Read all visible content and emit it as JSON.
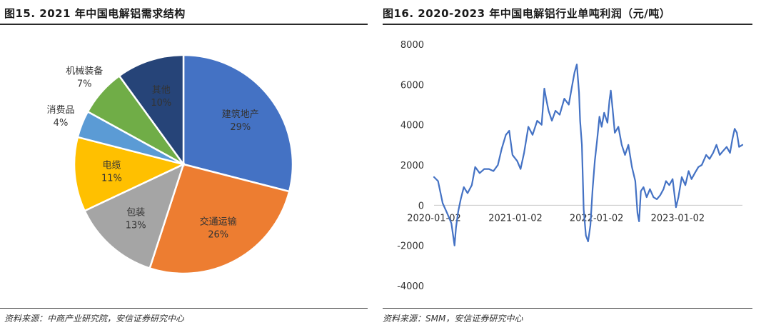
{
  "left": {
    "title": "图15. 2021 年中国电解铝需求结构",
    "source": "资料来源：中商产业研究院，安信证券研究中心"
  },
  "right": {
    "title": "图16. 2020-2023 年中国电解铝行业单吨利润（元/吨）",
    "source": "资料来源：SMM，安信证券研究中心"
  },
  "chart_data": [
    {
      "type": "pie",
      "title": "2021 年中国电解铝需求结构",
      "slices": [
        {
          "label": "建筑地产",
          "value": 29,
          "value_label": "29%",
          "color": "#4472C4"
        },
        {
          "label": "交通运输",
          "value": 26,
          "value_label": "26%",
          "color": "#ED7D31"
        },
        {
          "label": "包装",
          "value": 13,
          "value_label": "13%",
          "color": "#A5A5A5"
        },
        {
          "label": "电缆",
          "value": 11,
          "value_label": "11%",
          "color": "#FFC000"
        },
        {
          "label": "消费品",
          "value": 4,
          "value_label": "4%",
          "color": "#5B9BD5"
        },
        {
          "label": "机械装备",
          "value": 7,
          "value_label": "7%",
          "color": "#70AD47"
        },
        {
          "label": "其他",
          "value": 10,
          "value_label": "10%",
          "color": "#264478"
        }
      ]
    },
    {
      "type": "line",
      "title": "2020-2023 年中国电解铝行业单吨利润（元/吨）",
      "ylim": [
        -4000,
        8000
      ],
      "yticks": [
        8000,
        6000,
        4000,
        2000,
        0,
        -2000,
        -4000
      ],
      "xticks": [
        "2020-01-02",
        "2021-01-02",
        "2022-01-02",
        "2023-01-02"
      ],
      "xlim": [
        "2020-01-02",
        "2023-10-20"
      ],
      "color": "#4472C4",
      "series": [
        {
          "x": [
            "2020-01-02",
            "2020-01-20",
            "2020-02-10",
            "2020-03-01",
            "2020-03-20",
            "2020-04-03",
            "2020-04-10",
            "2020-04-20",
            "2020-05-01",
            "2020-05-15",
            "2020-06-01",
            "2020-06-20",
            "2020-07-05",
            "2020-07-25",
            "2020-08-15",
            "2020-09-05",
            "2020-09-25",
            "2020-10-15",
            "2020-11-01",
            "2020-11-20",
            "2020-12-05",
            "2020-12-20",
            "2021-01-10",
            "2021-01-25",
            "2021-02-10",
            "2021-03-01",
            "2021-03-20",
            "2021-04-10",
            "2021-04-30",
            "2021-05-12",
            "2021-05-20",
            "2021-05-31",
            "2021-06-15",
            "2021-07-01",
            "2021-07-20",
            "2021-08-10",
            "2021-08-30",
            "2021-09-15",
            "2021-09-25",
            "2021-10-05",
            "2021-10-15",
            "2021-10-20",
            "2021-10-28",
            "2021-11-05",
            "2021-11-15",
            "2021-11-25",
            "2021-12-05",
            "2021-12-15",
            "2021-12-25",
            "2022-01-05",
            "2022-01-15",
            "2022-01-25",
            "2022-02-05",
            "2022-02-20",
            "2022-03-01",
            "2022-03-07",
            "2022-03-15",
            "2022-03-25",
            "2022-04-10",
            "2022-04-25",
            "2022-05-10",
            "2022-05-25",
            "2022-06-10",
            "2022-06-25",
            "2022-07-05",
            "2022-07-12",
            "2022-07-20",
            "2022-08-01",
            "2022-08-15",
            "2022-08-30",
            "2022-09-15",
            "2022-09-30",
            "2022-10-15",
            "2022-10-30",
            "2022-11-10",
            "2022-11-25",
            "2022-12-10",
            "2022-12-25",
            "2023-01-05",
            "2023-01-20",
            "2023-02-05",
            "2023-02-20",
            "2023-03-05",
            "2023-03-20",
            "2023-04-05",
            "2023-04-20",
            "2023-05-10",
            "2023-05-25",
            "2023-06-10",
            "2023-06-25",
            "2023-07-10",
            "2023-07-25",
            "2023-08-10",
            "2023-08-25",
            "2023-09-05",
            "2023-09-15",
            "2023-09-25",
            "2023-10-05",
            "2023-10-20"
          ],
          "y": [
            1400,
            1200,
            100,
            -400,
            -900,
            -2000,
            -1100,
            -300,
            300,
            900,
            600,
            1000,
            1900,
            1600,
            1800,
            1800,
            1700,
            2000,
            2800,
            3500,
            3700,
            2500,
            2200,
            1800,
            2600,
            3900,
            3500,
            4200,
            4000,
            5800,
            5300,
            4700,
            4200,
            4700,
            4500,
            5300,
            5000,
            6000,
            6600,
            7000,
            5600,
            4200,
            3000,
            -200,
            -1500,
            -1800,
            -1000,
            800,
            2200,
            3300,
            4400,
            3900,
            4600,
            4100,
            5200,
            5700,
            4800,
            3600,
            3900,
            3000,
            2500,
            3000,
            1900,
            1200,
            -400,
            -800,
            700,
            900,
            400,
            800,
            400,
            300,
            500,
            800,
            1200,
            1000,
            1300,
            -100,
            400,
            1400,
            1000,
            1700,
            1300,
            1600,
            1900,
            2000,
            2500,
            2300,
            2600,
            3000,
            2500,
            2700,
            2900,
            2600,
            3300,
            3800,
            3600,
            2900,
            3000
          ]
        }
      ]
    }
  ]
}
